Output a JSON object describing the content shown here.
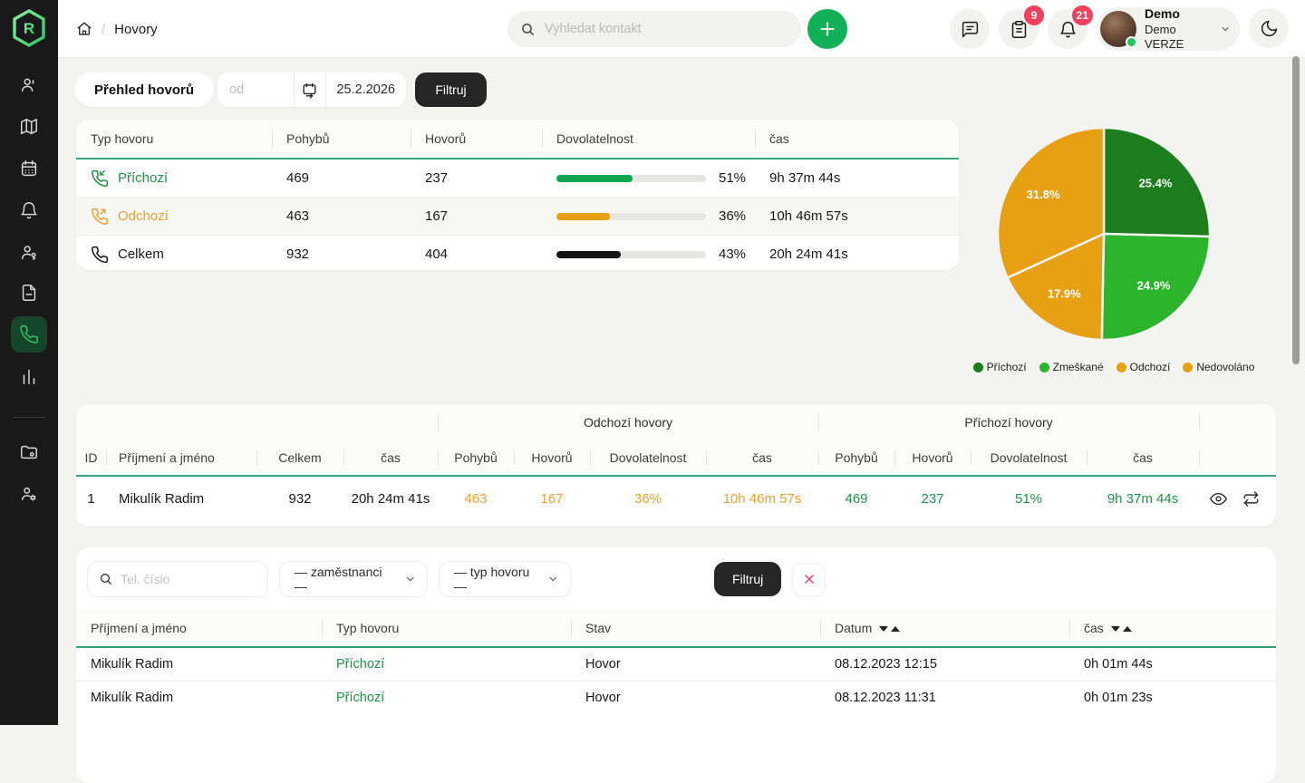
{
  "colors": {
    "accent_green": "#12b157",
    "badge_red": "#f43f5e",
    "orange": "#e8a013",
    "dark_green": "#1d7d1d",
    "light_green": "#2bb42c",
    "table_underline": "#35a57c"
  },
  "sidebar": {
    "icons": [
      "agents",
      "map",
      "calendar",
      "notifications",
      "person-key",
      "documents",
      "calls",
      "statistics",
      "folder-settings",
      "user-settings"
    ],
    "active": "calls"
  },
  "topbar": {
    "breadcrumb": {
      "current": "Hovory"
    },
    "search": {
      "placeholder": "Vyhledat kontakt"
    },
    "badges": {
      "clipboard": "9",
      "bell": "21"
    },
    "user": {
      "name": "Demo",
      "subtitle": "Demo VERZE"
    }
  },
  "toolbar": {
    "title": "Přehled hovorů",
    "date_from_placeholder": "od",
    "date_to": "25.2.2026",
    "filter_label": "Filtruj"
  },
  "overview": {
    "headers": {
      "type": "Typ hovoru",
      "moves": "Pohybů",
      "calls": "Hovorů",
      "reachability": "Dovolatelnost",
      "time": "čas"
    },
    "rows": [
      {
        "type": "Příchozí",
        "moves": "469",
        "calls": "237",
        "percent": 51,
        "percent_label": "51%",
        "time": "9h 37m 44s"
      },
      {
        "type": "Odchozí",
        "moves": "463",
        "calls": "167",
        "percent": 36,
        "percent_label": "36%",
        "time": "10h 46m 57s"
      },
      {
        "type": "Celkem",
        "moves": "932",
        "calls": "404",
        "percent": 43,
        "percent_label": "43%",
        "time": "20h 24m 41s"
      }
    ]
  },
  "chart_data": {
    "type": "pie",
    "labels": [
      "Příchozí",
      "Zmeškané",
      "Odchozí",
      "Nedovoláno"
    ],
    "values": [
      25.4,
      24.9,
      17.9,
      31.8
    ],
    "slice_labels": [
      "25.4%",
      "24.9%",
      "17.9%",
      "31.8%"
    ],
    "colors": [
      "#1d7d1d",
      "#2bb42c",
      "#e8a013",
      "#e8a013"
    ],
    "legend_position": "bottom",
    "start_angle_deg": -90,
    "direction": "clockwise"
  },
  "employees": {
    "group_headers": {
      "outgoing": "Odchozí hovory",
      "incoming": "Příchozí hovory"
    },
    "headers": {
      "id": "ID",
      "name": "Příjmení a jméno",
      "total": "Celkem",
      "time": "čas",
      "moves": "Pohybů",
      "calls": "Hovorů",
      "reachability": "Dovolatelnost"
    },
    "rows": [
      {
        "id": "1",
        "name": "Mikulík Radim",
        "total": "932",
        "total_time": "20h 24m 41s",
        "out_moves": "463",
        "out_calls": "167",
        "out_pct": "36%",
        "out_time": "10h 46m 57s",
        "in_moves": "469",
        "in_calls": "237",
        "in_pct": "51%",
        "in_time": "9h 37m 44s"
      }
    ]
  },
  "calls": {
    "filter": {
      "phone_placeholder": "Tel. číslo",
      "employees_select": "— zaměstnanci —",
      "type_select": "— typ hovoru —",
      "filter_label": "Filtruj"
    },
    "headers": {
      "name": "Příjmení a jméno",
      "type": "Typ hovoru",
      "state": "Stav",
      "date": "Datum",
      "time": "čas"
    },
    "rows": [
      {
        "name": "Mikulík Radim",
        "type": "Příchozí",
        "state": "Hovor",
        "date": "08.12.2023 12:15",
        "time": "0h 01m 44s"
      },
      {
        "name": "Mikulík Radim",
        "type": "Příchozí",
        "state": "Hovor",
        "date": "08.12.2023 11:31",
        "time": "0h 01m 23s"
      }
    ]
  }
}
